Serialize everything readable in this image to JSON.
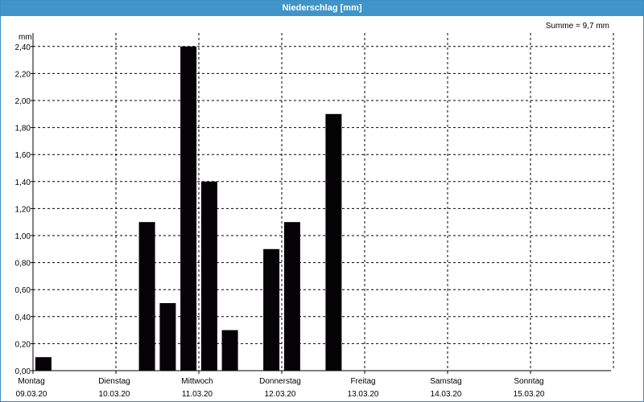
{
  "window": {
    "title": "Niederschlag [mm]"
  },
  "chart_data": {
    "type": "bar",
    "title": "Niederschlag [mm]",
    "ylabel": "mm",
    "summary": "Summe = 9,7 mm",
    "ylim": [
      0,
      2.5
    ],
    "yticks": [
      "0,00",
      "0,20",
      "0,40",
      "0,60",
      "0,80",
      "1,00",
      "1,20",
      "1,40",
      "1,60",
      "1,80",
      "2,00",
      "2,20",
      "2,40"
    ],
    "ytick_values": [
      0,
      0.2,
      0.4,
      0.6,
      0.8,
      1.0,
      1.2,
      1.4,
      1.6,
      1.8,
      2.0,
      2.2,
      2.4
    ],
    "days": [
      {
        "name": "Montag",
        "date": "09.03.20"
      },
      {
        "name": "Dienstag",
        "date": "10.03.20"
      },
      {
        "name": "Mittwoch",
        "date": "11.03.20"
      },
      {
        "name": "Donnerstag",
        "date": "12.03.20"
      },
      {
        "name": "Freitag",
        "date": "13.03.20"
      },
      {
        "name": "Samstag",
        "date": "14.03.20"
      },
      {
        "name": "Sonntag",
        "date": "15.03.20"
      }
    ],
    "interval_hours": 6,
    "values": [
      0.1,
      0,
      0,
      0,
      0,
      1.1,
      0.5,
      2.4,
      1.4,
      0.3,
      0,
      0.9,
      1.1,
      0,
      1.9,
      0,
      0,
      0,
      0,
      0,
      0,
      0,
      0,
      0,
      0,
      0,
      0,
      0
    ],
    "grid": true,
    "bar_color": "#050305"
  }
}
